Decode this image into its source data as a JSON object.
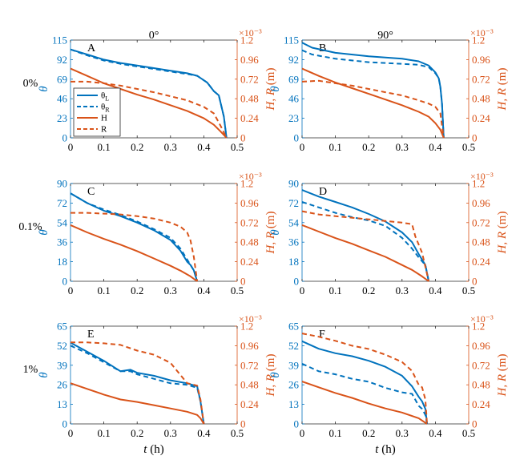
{
  "colors": {
    "blue": "#0072BD",
    "orange": "#D95319",
    "axis": "#262626"
  },
  "figure": {
    "column_titles": [
      "0°",
      "90°"
    ],
    "row_labels": [
      "0%",
      "0.1%",
      "1%"
    ],
    "x_label": "t",
    "x_unit": "(h)",
    "left_label": "θ",
    "right_label": "H, R",
    "right_unit": "(m)",
    "exponent_label": "×10⁻³",
    "legend": [
      "θ_L",
      "θ_R",
      "H",
      "R"
    ]
  },
  "chart_data": [
    {
      "type": "line",
      "panel": "A",
      "row": 0,
      "col": 0,
      "x_ticks": [
        "0",
        "0.1",
        "0.2",
        "0.3",
        "0.4",
        "0.5"
      ],
      "xlim": [
        0,
        0.5
      ],
      "left_ylim": [
        0,
        115
      ],
      "left_ticks": [
        "0",
        "23",
        "46",
        "69",
        "92",
        "115"
      ],
      "right_ylim": [
        0,
        1.2
      ],
      "right_ticks": [
        "0",
        "0.24",
        "0.48",
        "0.72",
        "0.96",
        "1.2"
      ],
      "series": [
        {
          "name": "θ_L",
          "axis": "left",
          "style": "solid",
          "color": "blue",
          "x": [
            0,
            0.05,
            0.1,
            0.15,
            0.2,
            0.25,
            0.3,
            0.35,
            0.38,
            0.41,
            0.43,
            0.445,
            0.46,
            0.468
          ],
          "y": [
            104,
            98,
            92,
            88,
            85,
            82,
            79,
            76,
            73,
            65,
            55,
            50,
            25,
            0
          ]
        },
        {
          "name": "θ_R",
          "axis": "left",
          "style": "dashed",
          "color": "blue",
          "x": [
            0,
            0.05,
            0.1,
            0.15,
            0.2,
            0.25,
            0.3,
            0.35,
            0.38,
            0.41,
            0.43,
            0.445,
            0.46,
            0.468
          ],
          "y": [
            104,
            97,
            91,
            87,
            84,
            81,
            78,
            75,
            73,
            65,
            55,
            50,
            25,
            0
          ]
        },
        {
          "name": "H",
          "axis": "right",
          "style": "solid",
          "color": "orange",
          "x": [
            0,
            0.05,
            0.1,
            0.15,
            0.2,
            0.25,
            0.3,
            0.35,
            0.4,
            0.43,
            0.45,
            0.468
          ],
          "y": [
            0.85,
            0.76,
            0.67,
            0.6,
            0.53,
            0.47,
            0.4,
            0.33,
            0.24,
            0.16,
            0.08,
            0
          ]
        },
        {
          "name": "R",
          "axis": "right",
          "style": "dashed",
          "color": "orange",
          "x": [
            0,
            0.05,
            0.1,
            0.15,
            0.2,
            0.25,
            0.3,
            0.35,
            0.4,
            0.43,
            0.45,
            0.468
          ],
          "y": [
            0.69,
            0.69,
            0.67,
            0.64,
            0.6,
            0.56,
            0.51,
            0.46,
            0.38,
            0.3,
            0.15,
            0
          ]
        }
      ]
    },
    {
      "type": "line",
      "panel": "B",
      "row": 0,
      "col": 1,
      "x_ticks": [
        "0",
        "0.1",
        "0.2",
        "0.3",
        "0.4",
        "0.5"
      ],
      "xlim": [
        0,
        0.5
      ],
      "left_ylim": [
        0,
        115
      ],
      "left_ticks": [
        "0",
        "23",
        "46",
        "69",
        "92",
        "115"
      ],
      "right_ylim": [
        0,
        1.2
      ],
      "right_ticks": [
        "0",
        "0.24",
        "0.48",
        "0.72",
        "0.96",
        "1.2"
      ],
      "series": [
        {
          "name": "θ_L",
          "axis": "left",
          "style": "solid",
          "color": "blue",
          "x": [
            0,
            0.03,
            0.1,
            0.2,
            0.3,
            0.35,
            0.38,
            0.4,
            0.41,
            0.415,
            0.42,
            0.425
          ],
          "y": [
            112,
            106,
            100,
            96,
            93,
            90,
            85,
            77,
            70,
            60,
            40,
            0
          ]
        },
        {
          "name": "θ_R",
          "axis": "left",
          "style": "dashed",
          "color": "blue",
          "x": [
            0,
            0.03,
            0.1,
            0.2,
            0.3,
            0.35,
            0.38,
            0.4,
            0.41,
            0.415,
            0.42,
            0.425
          ],
          "y": [
            103,
            98,
            93,
            89,
            87,
            86,
            83,
            76,
            70,
            60,
            40,
            0
          ]
        },
        {
          "name": "H",
          "axis": "right",
          "style": "solid",
          "color": "orange",
          "x": [
            0,
            0.05,
            0.1,
            0.15,
            0.2,
            0.25,
            0.3,
            0.35,
            0.38,
            0.4,
            0.415,
            0.425
          ],
          "y": [
            0.85,
            0.76,
            0.68,
            0.61,
            0.54,
            0.47,
            0.4,
            0.32,
            0.26,
            0.18,
            0.1,
            0
          ]
        },
        {
          "name": "R",
          "axis": "right",
          "style": "dashed",
          "color": "orange",
          "x": [
            0,
            0.05,
            0.1,
            0.15,
            0.2,
            0.25,
            0.3,
            0.35,
            0.38,
            0.4,
            0.415,
            0.425
          ],
          "y": [
            0.69,
            0.7,
            0.67,
            0.64,
            0.6,
            0.56,
            0.52,
            0.46,
            0.42,
            0.38,
            0.3,
            0
          ]
        }
      ]
    },
    {
      "type": "line",
      "panel": "C",
      "row": 1,
      "col": 0,
      "x_ticks": [
        "0",
        "0.1",
        "0.2",
        "0.3",
        "0.4",
        "0.5"
      ],
      "xlim": [
        0,
        0.5
      ],
      "left_ylim": [
        0,
        90
      ],
      "left_ticks": [
        "0",
        "18",
        "36",
        "54",
        "72",
        "90"
      ],
      "right_ylim": [
        0,
        1.2
      ],
      "right_ticks": [
        "0",
        "0.24",
        "0.48",
        "0.72",
        "0.96",
        "1.2"
      ],
      "series": [
        {
          "name": "θ_L",
          "axis": "left",
          "style": "solid",
          "color": "blue",
          "x": [
            0,
            0.05,
            0.1,
            0.15,
            0.2,
            0.25,
            0.3,
            0.33,
            0.35,
            0.36,
            0.37,
            0.38
          ],
          "y": [
            81,
            72,
            65,
            60,
            54,
            47,
            38,
            28,
            18,
            15,
            10,
            0
          ]
        },
        {
          "name": "θ_R",
          "axis": "left",
          "style": "dashed",
          "color": "blue",
          "x": [
            0,
            0.05,
            0.1,
            0.15,
            0.2,
            0.25,
            0.3,
            0.33,
            0.35,
            0.36,
            0.37,
            0.38
          ],
          "y": [
            81,
            72,
            66,
            61,
            55,
            48,
            40,
            30,
            20,
            15,
            10,
            0
          ]
        },
        {
          "name": "H",
          "axis": "right",
          "style": "solid",
          "color": "orange",
          "x": [
            0,
            0.05,
            0.1,
            0.15,
            0.2,
            0.25,
            0.3,
            0.33,
            0.36,
            0.38
          ],
          "y": [
            0.69,
            0.6,
            0.52,
            0.45,
            0.37,
            0.28,
            0.19,
            0.13,
            0.06,
            0
          ]
        },
        {
          "name": "R",
          "axis": "right",
          "style": "dashed",
          "color": "orange",
          "x": [
            0,
            0.05,
            0.1,
            0.15,
            0.2,
            0.25,
            0.3,
            0.33,
            0.35,
            0.36,
            0.37,
            0.38
          ],
          "y": [
            0.84,
            0.84,
            0.83,
            0.82,
            0.8,
            0.77,
            0.72,
            0.67,
            0.6,
            0.5,
            0.3,
            0
          ]
        }
      ]
    },
    {
      "type": "line",
      "panel": "D",
      "row": 1,
      "col": 1,
      "x_ticks": [
        "0",
        "0.1",
        "0.2",
        "0.3",
        "0.4",
        "0.5"
      ],
      "xlim": [
        0,
        0.5
      ],
      "left_ylim": [
        0,
        90
      ],
      "left_ticks": [
        "0",
        "18",
        "36",
        "54",
        "72",
        "90"
      ],
      "right_ylim": [
        0,
        1.2
      ],
      "right_ticks": [
        "0",
        "0.24",
        "0.48",
        "0.72",
        "0.96",
        "1.2"
      ],
      "series": [
        {
          "name": "θ_L",
          "axis": "left",
          "style": "solid",
          "color": "blue",
          "x": [
            0,
            0.05,
            0.1,
            0.15,
            0.2,
            0.25,
            0.3,
            0.33,
            0.35,
            0.37,
            0.38
          ],
          "y": [
            84,
            78,
            73,
            68,
            62,
            55,
            45,
            36,
            25,
            15,
            0
          ]
        },
        {
          "name": "θ_R",
          "axis": "left",
          "style": "dashed",
          "color": "blue",
          "x": [
            0,
            0.05,
            0.1,
            0.15,
            0.2,
            0.25,
            0.3,
            0.33,
            0.35,
            0.37,
            0.38
          ],
          "y": [
            73,
            68,
            63,
            59,
            56,
            51,
            40,
            30,
            22,
            15,
            0
          ]
        },
        {
          "name": "H",
          "axis": "right",
          "style": "solid",
          "color": "orange",
          "x": [
            0,
            0.05,
            0.1,
            0.15,
            0.2,
            0.25,
            0.3,
            0.33,
            0.36,
            0.38
          ],
          "y": [
            0.69,
            0.61,
            0.53,
            0.46,
            0.38,
            0.3,
            0.2,
            0.14,
            0.06,
            0
          ]
        },
        {
          "name": "R",
          "axis": "right",
          "style": "dashed",
          "color": "orange",
          "x": [
            0,
            0.05,
            0.1,
            0.15,
            0.2,
            0.25,
            0.3,
            0.33,
            0.34,
            0.36,
            0.38
          ],
          "y": [
            0.86,
            0.82,
            0.8,
            0.78,
            0.76,
            0.74,
            0.72,
            0.7,
            0.55,
            0.35,
            0
          ]
        }
      ]
    },
    {
      "type": "line",
      "panel": "E",
      "row": 2,
      "col": 0,
      "x_ticks": [
        "0",
        "0.1",
        "0.2",
        "0.3",
        "0.4",
        "0.5"
      ],
      "xlim": [
        0,
        0.5
      ],
      "left_ylim": [
        0,
        65
      ],
      "left_ticks": [
        "0",
        "13",
        "26",
        "39",
        "52",
        "65"
      ],
      "right_ylim": [
        0,
        1.2
      ],
      "right_ticks": [
        "0",
        "0.24",
        "0.48",
        "0.72",
        "0.96",
        "1.2"
      ],
      "series": [
        {
          "name": "θ_L",
          "axis": "left",
          "style": "solid",
          "color": "blue",
          "x": [
            0,
            0.05,
            0.1,
            0.15,
            0.18,
            0.2,
            0.25,
            0.3,
            0.35,
            0.38,
            0.39,
            0.4
          ],
          "y": [
            54,
            48,
            42,
            35,
            36,
            34,
            32,
            29,
            27,
            25,
            15,
            0
          ]
        },
        {
          "name": "θ_R",
          "axis": "left",
          "style": "dashed",
          "color": "blue",
          "x": [
            0,
            0.05,
            0.1,
            0.15,
            0.18,
            0.2,
            0.25,
            0.3,
            0.35,
            0.38,
            0.39,
            0.4
          ],
          "y": [
            52,
            47,
            41,
            35,
            35,
            33,
            30,
            27,
            26,
            24,
            15,
            0
          ]
        },
        {
          "name": "H",
          "axis": "right",
          "style": "solid",
          "color": "orange",
          "x": [
            0,
            0.05,
            0.1,
            0.15,
            0.2,
            0.25,
            0.3,
            0.35,
            0.38,
            0.39,
            0.4
          ],
          "y": [
            0.5,
            0.43,
            0.36,
            0.3,
            0.27,
            0.23,
            0.19,
            0.15,
            0.11,
            0.07,
            0
          ]
        },
        {
          "name": "R",
          "axis": "right",
          "style": "dashed",
          "color": "orange",
          "x": [
            0,
            0.05,
            0.1,
            0.15,
            0.2,
            0.25,
            0.3,
            0.33,
            0.35,
            0.38,
            0.39,
            0.4
          ],
          "y": [
            1.0,
            1.0,
            0.99,
            0.97,
            0.9,
            0.85,
            0.75,
            0.6,
            0.5,
            0.47,
            0.3,
            0
          ]
        }
      ]
    },
    {
      "type": "line",
      "panel": "F",
      "row": 2,
      "col": 1,
      "x_ticks": [
        "0",
        "0.1",
        "0.2",
        "0.3",
        "0.4",
        "0.5"
      ],
      "xlim": [
        0,
        0.5
      ],
      "left_ylim": [
        0,
        65
      ],
      "left_ticks": [
        "0",
        "13",
        "26",
        "39",
        "52",
        "65"
      ],
      "right_ylim": [
        0,
        1.2
      ],
      "right_ticks": [
        "0",
        "0.24",
        "0.48",
        "0.72",
        "0.96",
        "1.2"
      ],
      "series": [
        {
          "name": "θ_L",
          "axis": "left",
          "style": "solid",
          "color": "blue",
          "x": [
            0,
            0.05,
            0.1,
            0.15,
            0.2,
            0.25,
            0.3,
            0.33,
            0.35,
            0.36,
            0.37,
            0.375
          ],
          "y": [
            55,
            50,
            47,
            45,
            42,
            38,
            32,
            25,
            18,
            15,
            10,
            0
          ]
        },
        {
          "name": "θ_R",
          "axis": "left",
          "style": "dashed",
          "color": "blue",
          "x": [
            0,
            0.05,
            0.1,
            0.15,
            0.2,
            0.25,
            0.3,
            0.33,
            0.35,
            0.36,
            0.37,
            0.375
          ],
          "y": [
            40,
            35,
            33,
            30,
            28,
            24,
            21,
            20,
            12,
            10,
            6,
            0
          ]
        },
        {
          "name": "H",
          "axis": "right",
          "style": "solid",
          "color": "orange",
          "x": [
            0,
            0.05,
            0.1,
            0.15,
            0.2,
            0.25,
            0.3,
            0.35,
            0.375
          ],
          "y": [
            0.52,
            0.45,
            0.38,
            0.32,
            0.25,
            0.19,
            0.14,
            0.07,
            0
          ]
        },
        {
          "name": "R",
          "axis": "right",
          "style": "dashed",
          "color": "orange",
          "x": [
            0,
            0.05,
            0.1,
            0.15,
            0.2,
            0.25,
            0.3,
            0.33,
            0.35,
            0.36,
            0.37,
            0.375
          ],
          "y": [
            1.11,
            1.07,
            1.02,
            0.96,
            0.92,
            0.85,
            0.76,
            0.65,
            0.48,
            0.45,
            0.3,
            0
          ]
        }
      ]
    }
  ]
}
